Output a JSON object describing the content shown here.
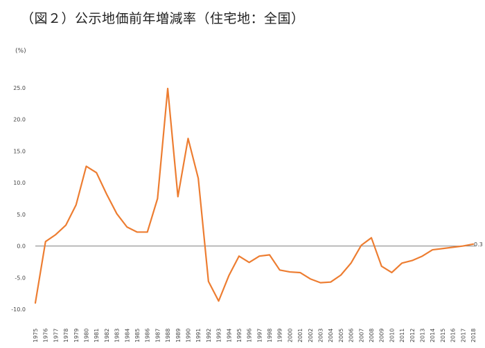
{
  "title": "（図２）公示地価前年増減率（住宅地：全国）",
  "chart_data": {
    "type": "line",
    "title": "（図２）公示地価前年増減率（住宅地：全国）",
    "unit_label": "(%)",
    "xlabel": "",
    "ylabel": "(%)",
    "ylim": [
      -10.0,
      25.0
    ],
    "yticks": [
      "25.0",
      "20.0",
      "15.0",
      "10.0",
      "5.0",
      "0.0",
      "-5.0",
      "-10.0"
    ],
    "grid": false,
    "zero_line": true,
    "series_color": "#ED7D31",
    "zero_line_color": "#808080",
    "end_label": "0.3",
    "x": [
      1975,
      1976,
      1977,
      1978,
      1979,
      1980,
      1981,
      1982,
      1983,
      1984,
      1985,
      1986,
      1987,
      1988,
      1989,
      1990,
      1991,
      1992,
      1993,
      1994,
      1995,
      1996,
      1997,
      1998,
      1999,
      2000,
      2001,
      2002,
      2003,
      2004,
      2005,
      2006,
      2007,
      2008,
      2009,
      2010,
      2011,
      2012,
      2013,
      2014,
      2015,
      2016,
      2017,
      2018
    ],
    "series": [
      {
        "values": [
          -9.0,
          0.7,
          1.8,
          3.3,
          6.5,
          12.6,
          11.6,
          8.2,
          5.1,
          3.0,
          2.2,
          2.2,
          7.5,
          24.9,
          7.8,
          17.0,
          10.7,
          -5.6,
          -8.7,
          -4.7,
          -1.6,
          -2.6,
          -1.6,
          -1.4,
          -3.8,
          -4.1,
          -4.2,
          -5.2,
          -5.8,
          -5.7,
          -4.6,
          -2.7,
          0.1,
          1.3,
          -3.2,
          -4.2,
          -2.7,
          -2.3,
          -1.6,
          -0.6,
          -0.4,
          -0.2,
          0.0,
          0.3
        ]
      }
    ]
  }
}
